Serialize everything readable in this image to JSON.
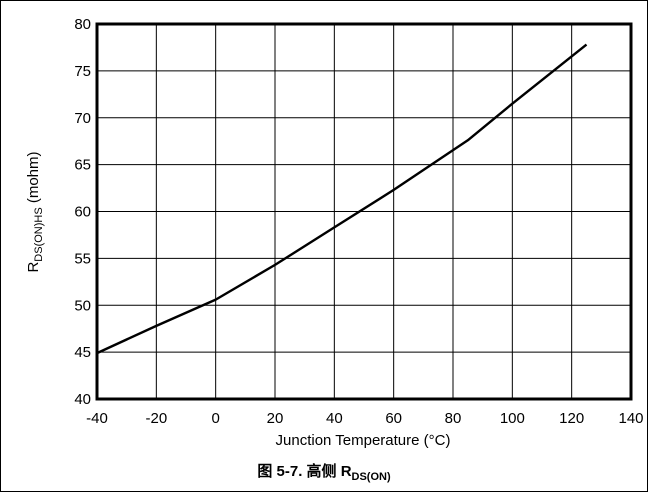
{
  "chart_data": {
    "type": "line",
    "xlabel": "Junction Temperature (°C)",
    "ylabel": {
      "main": "R",
      "subscript": "DS(ON)HS",
      "suffix": " (mohm)"
    },
    "xlim": [
      -40,
      140
    ],
    "ylim": [
      40,
      80
    ],
    "xticks": [
      "-40",
      "-20",
      "0",
      "20",
      "40",
      "60",
      "80",
      "100",
      "120",
      "140"
    ],
    "yticks": [
      "40",
      "45",
      "50",
      "55",
      "60",
      "65",
      "70",
      "75",
      "80"
    ],
    "grid": true,
    "series": [
      {
        "x": [
          -40,
          -20,
          0,
          20,
          40,
          60,
          85,
          100,
          125
        ],
        "values": [
          44.9,
          47.8,
          50.6,
          54.3,
          58.3,
          62.3,
          67.6,
          71.5,
          77.8
        ],
        "color": "#000000"
      }
    ]
  },
  "caption": {
    "prefix": "图 5-7. 高侧 R",
    "subscript": "DS(ON)"
  }
}
